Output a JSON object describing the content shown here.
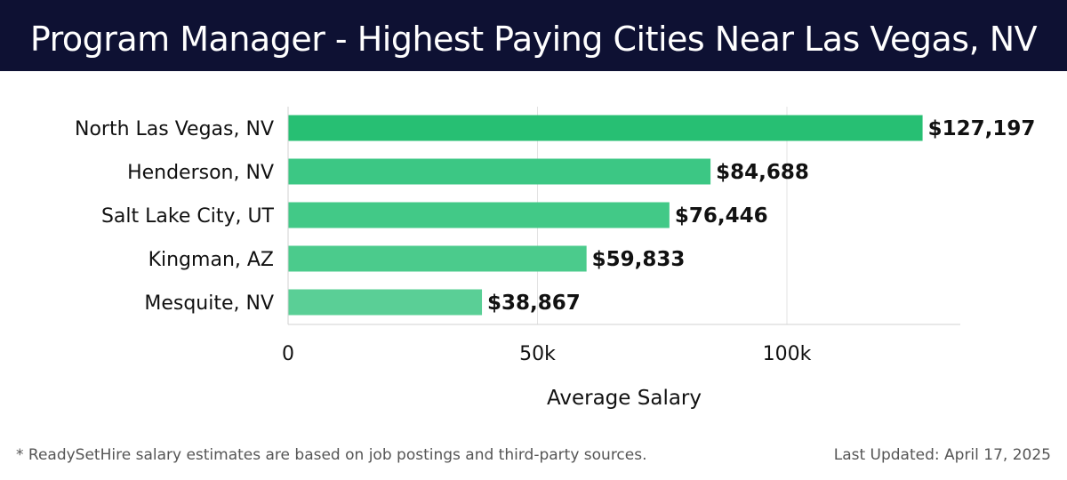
{
  "header": {
    "title": "Program Manager - Highest Paying Cities Near Las Vegas, NV"
  },
  "chart_data": {
    "type": "bar",
    "orientation": "horizontal",
    "title": "Program Manager - Highest Paying Cities Near Las Vegas, NV",
    "categories": [
      "North Las Vegas, NV",
      "Henderson, NV",
      "Salt Lake City, UT",
      "Kingman, AZ",
      "Mesquite, NV"
    ],
    "values": [
      127197,
      84688,
      76446,
      59833,
      38867
    ],
    "value_labels": [
      "$127,197",
      "$84,688",
      "$76,446",
      "$59,833",
      "$38,867"
    ],
    "xlabel": "Average Salary",
    "ylabel": "",
    "xlim": [
      0,
      134000
    ],
    "x_ticks": [
      0,
      50000,
      100000
    ],
    "x_tick_labels": [
      "0",
      "50k",
      "100k"
    ],
    "grid": "vertical",
    "legend": "none",
    "bar_colors": [
      "#27bf73",
      "#3cc784",
      "#42c987",
      "#4bcb8c",
      "#5acf96"
    ]
  },
  "footer": {
    "note": "* ReadySetHire salary estimates are based on job postings and third-party sources.",
    "updated": "Last Updated: April 17, 2025"
  }
}
